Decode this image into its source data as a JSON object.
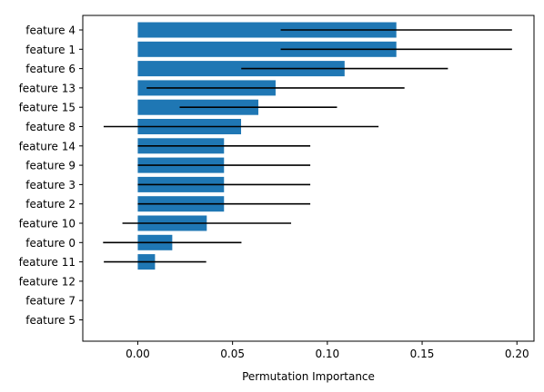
{
  "chart_data": {
    "type": "bar",
    "orientation": "horizontal",
    "xlabel": "Permutation Importance",
    "ylabel": "",
    "title": "",
    "xlim": [
      -0.029,
      0.209
    ],
    "xticks": [
      0.0,
      0.05,
      0.1,
      0.15,
      0.2
    ],
    "xtick_labels": [
      "0.00",
      "0.05",
      "0.10",
      "0.15",
      "0.20"
    ],
    "grid": false,
    "bar_color": "#1f77b4",
    "errorbar_color": "#000000",
    "categories": [
      "feature 4",
      "feature 1",
      "feature 6",
      "feature 13",
      "feature 15",
      "feature 8",
      "feature 14",
      "feature 9",
      "feature 3",
      "feature 2",
      "feature 10",
      "feature 0",
      "feature 11",
      "feature 12",
      "feature 7",
      "feature 5"
    ],
    "values": [
      0.1364,
      0.1364,
      0.1091,
      0.0727,
      0.0636,
      0.0545,
      0.0455,
      0.0455,
      0.0455,
      0.0455,
      0.0364,
      0.0182,
      0.0091,
      0.0,
      0.0,
      0.0
    ],
    "errors": [
      0.061,
      0.061,
      0.0545,
      0.068,
      0.0415,
      0.0725,
      0.0455,
      0.0455,
      0.0455,
      0.0455,
      0.0445,
      0.0365,
      0.027,
      0.0,
      0.0,
      0.0
    ]
  }
}
